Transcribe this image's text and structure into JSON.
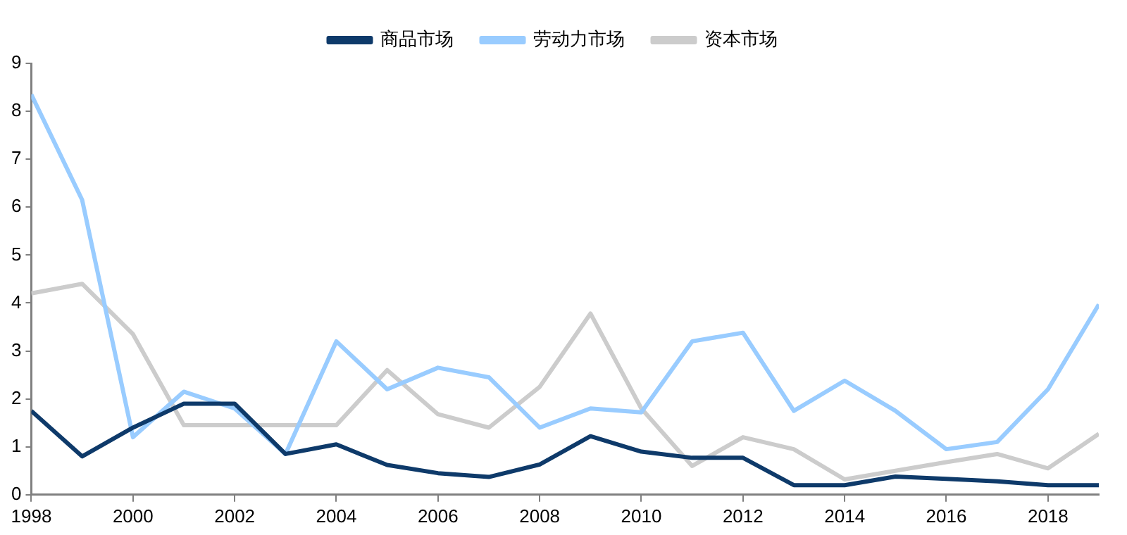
{
  "chart_data": {
    "type": "line",
    "x": [
      1998,
      1999,
      2000,
      2001,
      2002,
      2003,
      2004,
      2005,
      2006,
      2007,
      2008,
      2009,
      2010,
      2011,
      2012,
      2013,
      2014,
      2015,
      2016,
      2017,
      2018,
      2019
    ],
    "series": [
      {
        "name": "商品市场",
        "color": "#0e3a6a",
        "values": [
          1.75,
          0.8,
          1.4,
          1.9,
          1.9,
          0.85,
          1.05,
          0.62,
          0.45,
          0.37,
          0.63,
          1.22,
          0.9,
          0.77,
          0.77,
          0.2,
          0.2,
          0.38,
          0.33,
          0.28,
          0.2,
          0.2
        ]
      },
      {
        "name": "劳动力市场",
        "color": "#99ccff",
        "values": [
          8.35,
          6.15,
          1.2,
          2.15,
          1.8,
          0.85,
          3.2,
          2.2,
          2.65,
          2.45,
          1.4,
          1.8,
          1.72,
          3.2,
          3.38,
          1.75,
          2.38,
          1.75,
          0.95,
          1.1,
          2.2,
          3.97
        ]
      },
      {
        "name": "资本市场",
        "color": "#cccccc",
        "values": [
          4.2,
          4.4,
          3.35,
          1.45,
          1.45,
          1.45,
          1.45,
          2.6,
          1.68,
          1.4,
          2.25,
          3.78,
          1.8,
          0.6,
          1.2,
          0.95,
          0.32,
          0.5,
          0.68,
          0.85,
          0.55,
          1.27
        ]
      }
    ],
    "xlim": [
      1998,
      2019
    ],
    "xticks": [
      1998,
      2000,
      2002,
      2004,
      2006,
      2008,
      2010,
      2012,
      2014,
      2016,
      2018
    ],
    "ylim": [
      0,
      9
    ],
    "yticks": [
      0,
      1,
      2,
      3,
      4,
      5,
      6,
      7,
      8,
      9
    ],
    "grid": false,
    "legend": "top",
    "marker": "none",
    "line_style": "solid"
  }
}
